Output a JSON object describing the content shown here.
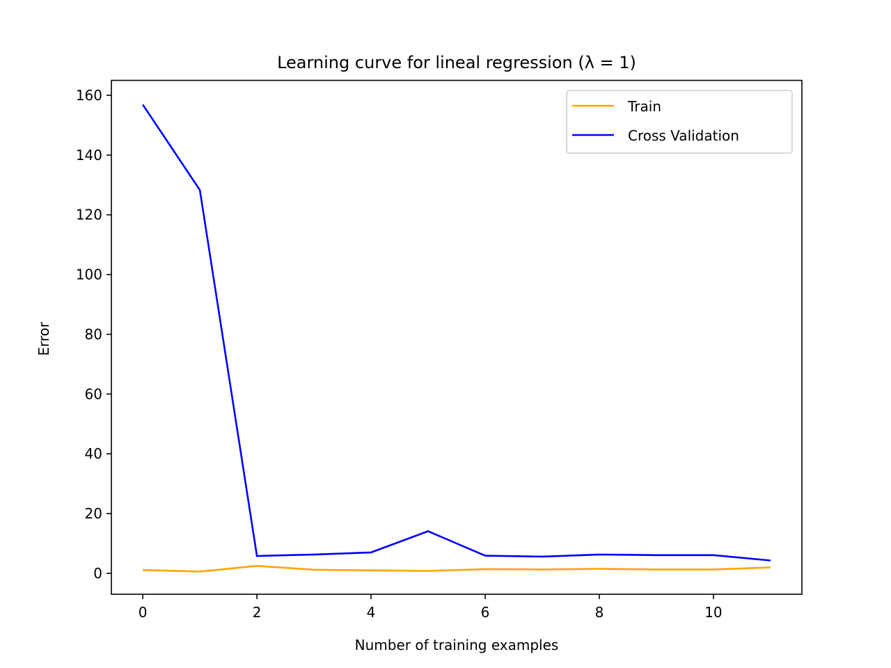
{
  "chart_data": {
    "type": "line",
    "title": "Learning curve for lineal regression (λ = 1)",
    "xlabel": "Number of training examples",
    "ylabel": "Error",
    "xlim": [
      -0.55,
      11.55
    ],
    "ylim": [
      -7,
      165
    ],
    "x_ticks": [
      0,
      2,
      4,
      6,
      8,
      10
    ],
    "y_ticks": [
      0,
      20,
      40,
      60,
      80,
      100,
      120,
      140,
      160
    ],
    "grid": false,
    "legend_position": "top-right",
    "x": [
      0,
      1,
      2,
      3,
      4,
      5,
      6,
      7,
      8,
      9,
      10,
      11
    ],
    "series": [
      {
        "name": "Train",
        "color": "#ffa500",
        "values": [
          1.1,
          0.6,
          2.5,
          1.2,
          1.0,
          0.8,
          1.4,
          1.3,
          1.5,
          1.3,
          1.3,
          2.0
        ]
      },
      {
        "name": "Cross Validation",
        "color": "#0000ff",
        "values": [
          156.9,
          128.3,
          5.8,
          6.3,
          7.0,
          14.1,
          5.9,
          5.6,
          6.3,
          6.1,
          6.1,
          4.3
        ]
      }
    ]
  }
}
